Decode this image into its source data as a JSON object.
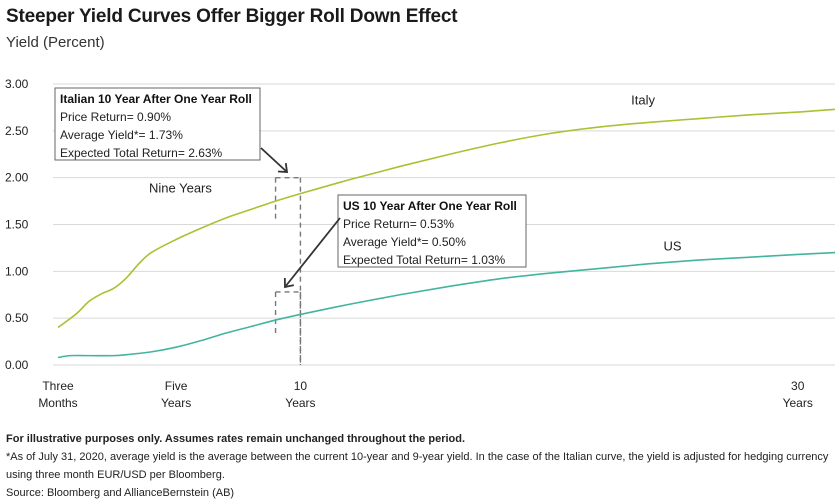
{
  "chart_data": {
    "type": "line",
    "title": "Steeper Yield Curves Offer Bigger Roll Down Effect",
    "ylabel": "Yield (Percent)",
    "ylim": [
      0,
      3
    ],
    "yticks": [
      "3.00",
      "2.50",
      "2.00",
      "1.50",
      "1.00",
      "0.50",
      "0.00"
    ],
    "xlim": [
      0.25,
      31.5
    ],
    "xticks": [
      {
        "x": 0.25,
        "line1": "Three",
        "line2": "Months"
      },
      {
        "x": 5,
        "line1": "Five",
        "line2": "Years"
      },
      {
        "x": 10,
        "line1": "10",
        "line2": "Years"
      },
      {
        "x": 30,
        "line1": "30",
        "line2": "Years"
      }
    ],
    "grid": true,
    "series": [
      {
        "name": "Italy",
        "color": "#a8c232",
        "points": [
          [
            0.25,
            0.4
          ],
          [
            1,
            0.55
          ],
          [
            1.5,
            0.68
          ],
          [
            2,
            0.76
          ],
          [
            2.5,
            0.82
          ],
          [
            3,
            0.93
          ],
          [
            3.5,
            1.08
          ],
          [
            4,
            1.2
          ],
          [
            5,
            1.34
          ],
          [
            6,
            1.46
          ],
          [
            7,
            1.57
          ],
          [
            8,
            1.66
          ],
          [
            9,
            1.75
          ],
          [
            10,
            1.83
          ],
          [
            12,
            1.98
          ],
          [
            14,
            2.12
          ],
          [
            16,
            2.25
          ],
          [
            18,
            2.37
          ],
          [
            20,
            2.47
          ],
          [
            22,
            2.54
          ],
          [
            24,
            2.59
          ],
          [
            26,
            2.63
          ],
          [
            28,
            2.67
          ],
          [
            30,
            2.7
          ],
          [
            31.5,
            2.73
          ]
        ]
      },
      {
        "name": "US",
        "color": "#43b4a0",
        "points": [
          [
            0.25,
            0.08
          ],
          [
            0.75,
            0.1
          ],
          [
            1.5,
            0.1
          ],
          [
            2.5,
            0.1
          ],
          [
            3,
            0.11
          ],
          [
            4,
            0.14
          ],
          [
            5,
            0.19
          ],
          [
            6,
            0.26
          ],
          [
            7,
            0.34
          ],
          [
            8,
            0.41
          ],
          [
            9,
            0.48
          ],
          [
            10,
            0.54
          ],
          [
            12,
            0.65
          ],
          [
            14,
            0.75
          ],
          [
            16,
            0.84
          ],
          [
            18,
            0.92
          ],
          [
            20,
            0.98
          ],
          [
            22,
            1.03
          ],
          [
            24,
            1.08
          ],
          [
            26,
            1.12
          ],
          [
            28,
            1.15
          ],
          [
            30,
            1.18
          ],
          [
            31.5,
            1.2
          ]
        ]
      }
    ],
    "annotations": {
      "nine_years": "Nine Years",
      "italy_box": {
        "title": "Italian 10 Year After One Year Roll",
        "lines": [
          "Price Return= 0.90%",
          "Average Yield*= 1.73%",
          "Expected Total Return= 2.63%"
        ]
      },
      "us_box": {
        "title": "US 10 Year After One Year Roll",
        "lines": [
          "Price Return= 0.53%",
          "Average Yield*= 0.50%",
          "Expected Total Return= 1.03%"
        ]
      },
      "roll_markers": [
        {
          "from_x": 9,
          "to_x": 10,
          "y": 2.0
        },
        {
          "from_x": 9,
          "to_x": 10,
          "y": 0.78
        }
      ]
    }
  },
  "footer": {
    "note_bold": "For illustrative purposes only. Assumes rates remain unchanged throughout the period.",
    "note1": "*As of July 31, 2020, average yield is the average between the current 10-year and 9-year yield.  In the case of the Italian curve, the yield is adjusted for hedging currency using three month EUR/USD per Bloomberg.",
    "source": "Source: Bloomberg and AllianceBernstein (AB)"
  }
}
